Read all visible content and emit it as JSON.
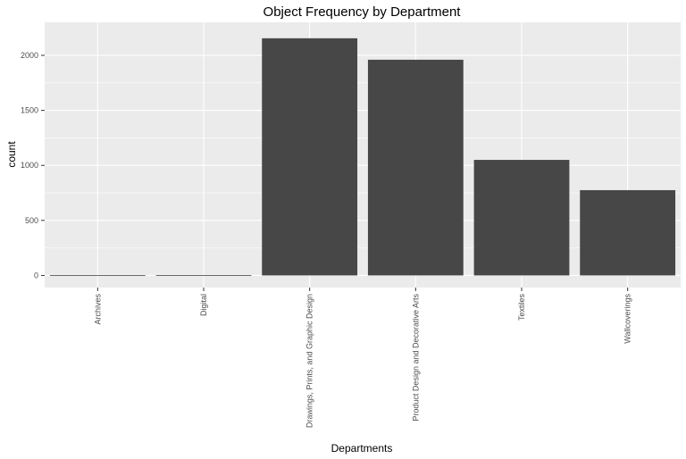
{
  "chart_data": {
    "type": "bar",
    "title": "Object Frequency by Department",
    "xlabel": "Departments",
    "ylabel": "count",
    "categories": [
      "Archives",
      "Digital",
      "Drawings, Prints, and Graphic Design",
      "Product Design and Decorative Arts",
      "Textiles",
      "Wallcoverings"
    ],
    "values": [
      2,
      3,
      2155,
      1960,
      1050,
      775
    ],
    "ylim": [
      -110,
      2300
    ],
    "yticks": [
      0,
      500,
      1000,
      1500,
      2000
    ],
    "grid": true,
    "colors": {
      "bar": "#474747",
      "panel": "#ebebeb",
      "grid": "#ffffff"
    }
  }
}
